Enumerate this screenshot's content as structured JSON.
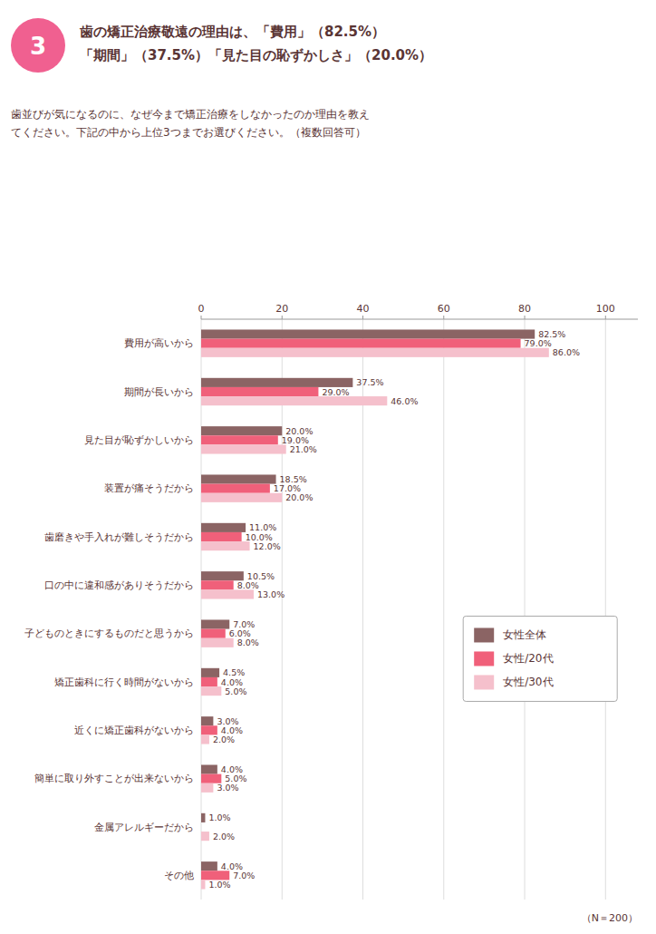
{
  "chart_data": {
    "type": "bar",
    "orientation": "horizontal",
    "title": "歯の矯正治療敬遠の理由は、「費用」（82.5%）\n「期間」（37.5%）「見た目の恥ずかしさ」（20.0%）",
    "subtitle": "歯並びが気になるのに、なぜ今まで矯正治療をしなかったのか理由を教え\nてください。下記の中から上位3つまでお選びください。（複数回答可）",
    "annotations": [
      {
        "text": "3",
        "color": "#F06090"
      },
      {
        "text": "（N＝200）"
      }
    ],
    "categories": [
      "費用が高いから",
      "期間が長いから",
      "見た目が恥ずかしいから",
      "装置が痛そうだから",
      "歯磨きや手入れが難しそうだから",
      "口の中に違和感がありそうだから",
      "子どものときにするものだと思うから",
      "矯正歯科に行く時間がないから",
      "近くに矯正歯科がないから",
      "簡単に取り外すことが出来ないから",
      "金属アレルギーだから",
      "その他"
    ],
    "series": [
      {
        "name": "女性全体",
        "color": "#8B6464",
        "values": [
          82.5,
          37.5,
          20.0,
          18.5,
          11.0,
          10.5,
          7.0,
          4.5,
          3.0,
          4.0,
          1.0,
          4.0
        ],
        "value_labels": [
          "82.5%",
          "37.5%",
          "20.0%",
          "18.5%",
          "11.0%",
          "10.5%",
          "7.0%",
          "4.5%",
          "3.0%",
          "4.0%",
          "1.0%",
          "4.0%"
        ]
      },
      {
        "name": "女性/20代",
        "color": "#F0607A",
        "values": [
          79.0,
          29.0,
          19.0,
          17.0,
          10.0,
          8.0,
          6.0,
          4.0,
          4.0,
          5.0,
          0.0,
          7.0
        ],
        "value_labels": [
          "79.0%",
          "29.0%",
          "19.0%",
          "17.0%",
          "10.0%",
          "8.0%",
          "6.0%",
          "4.0%",
          "4.0%",
          "5.0%",
          null,
          "7.0%"
        ]
      },
      {
        "name": "女性/30代",
        "color": "#F5C0CC",
        "values": [
          86.0,
          46.0,
          21.0,
          20.0,
          12.0,
          13.0,
          8.0,
          5.0,
          2.0,
          3.0,
          2.0,
          1.0
        ],
        "value_labels": [
          "86.0%",
          "46.0%",
          "21.0%",
          "20.0%",
          "12.0%",
          "13.0%",
          "8.0%",
          "5.0%",
          "2.0%",
          "3.0%",
          "2.0%",
          "1.0%"
        ]
      }
    ],
    "xlim": [
      0,
      108
    ],
    "xticks": [
      0,
      20,
      40,
      60,
      80,
      100
    ],
    "grid": true,
    "legend": "right",
    "data_labels": true
  }
}
